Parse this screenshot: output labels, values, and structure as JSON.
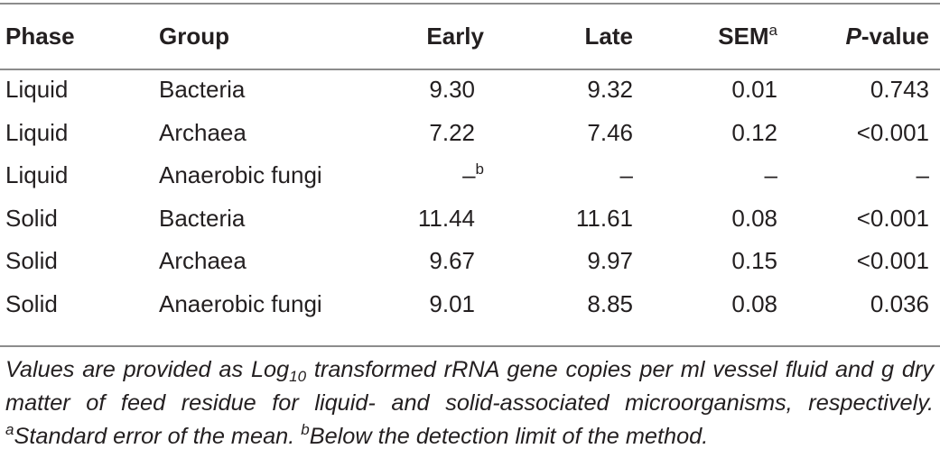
{
  "table": {
    "headers": {
      "phase": "Phase",
      "group": "Group",
      "early": "Early",
      "late": "Late",
      "sem": "SEM",
      "sem_sup": "a",
      "p_prefix": "P",
      "p_suffix": "-value"
    },
    "rows": [
      {
        "phase": "Liquid",
        "group": "Bacteria",
        "early": "9.30",
        "early_sup": "",
        "late": "9.32",
        "sem": "0.01",
        "p": "0.743"
      },
      {
        "phase": "Liquid",
        "group": "Archaea",
        "early": "7.22",
        "early_sup": "",
        "late": "7.46",
        "sem": "0.12",
        "p": "<0.001"
      },
      {
        "phase": "Liquid",
        "group": "Anaerobic fungi",
        "early": "–",
        "early_sup": "b",
        "late": "–",
        "sem": "–",
        "p": "–"
      },
      {
        "phase": "Solid",
        "group": "Bacteria",
        "early": "11.44",
        "early_sup": "",
        "late": "11.61",
        "sem": "0.08",
        "p": "<0.001"
      },
      {
        "phase": "Solid",
        "group": "Archaea",
        "early": "9.67",
        "early_sup": "",
        "late": "9.97",
        "sem": "0.15",
        "p": "<0.001"
      },
      {
        "phase": "Solid",
        "group": "Anaerobic fungi",
        "early": "9.01",
        "early_sup": "",
        "late": "8.85",
        "sem": "0.08",
        "p": "0.036"
      }
    ]
  },
  "footnote": {
    "part1": "Values are provided as Log",
    "sub": "10",
    "part2": " transformed rRNA gene copies per ml vessel fluid and g dry matter of feed residue for liquid- and solid-associated microorganisms, respectively. ",
    "sup_a": "a",
    "note_a": "Standard error of the mean. ",
    "sup_b": "b",
    "note_b": "Below the detection limit of the method."
  }
}
